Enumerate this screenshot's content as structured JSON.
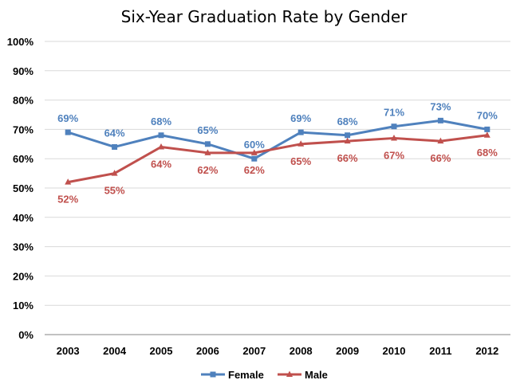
{
  "chart_data": {
    "type": "line",
    "title": "Six-Year Graduation Rate by Gender",
    "xlabel": "",
    "ylabel": "",
    "x": [
      "2003",
      "2004",
      "2005",
      "2006",
      "2007",
      "2008",
      "2009",
      "2010",
      "2011",
      "2012"
    ],
    "ylim": [
      0,
      100
    ],
    "yticks": [
      0,
      10,
      20,
      30,
      40,
      50,
      60,
      70,
      80,
      90,
      100
    ],
    "ytick_labels": [
      "0%",
      "10%",
      "20%",
      "30%",
      "40%",
      "50%",
      "60%",
      "70%",
      "80%",
      "90%",
      "100%"
    ],
    "grid": true,
    "legend_position": "bottom",
    "series": [
      {
        "name": "Female",
        "color": "#4F81BD",
        "marker": "square",
        "values": [
          69,
          64,
          68,
          65,
          60,
          69,
          68,
          71,
          73,
          70
        ],
        "labels": [
          "69%",
          "64%",
          "68%",
          "65%",
          "60%",
          "69%",
          "68%",
          "71%",
          "73%",
          "70%"
        ],
        "label_position": "above"
      },
      {
        "name": "Male",
        "color": "#C0504D",
        "marker": "triangle",
        "values": [
          52,
          55,
          64,
          62,
          62,
          65,
          66,
          67,
          66,
          68
        ],
        "labels": [
          "52%",
          "55%",
          "64%",
          "62%",
          "62%",
          "65%",
          "66%",
          "67%",
          "66%",
          "68%"
        ],
        "label_position": "below"
      }
    ]
  }
}
